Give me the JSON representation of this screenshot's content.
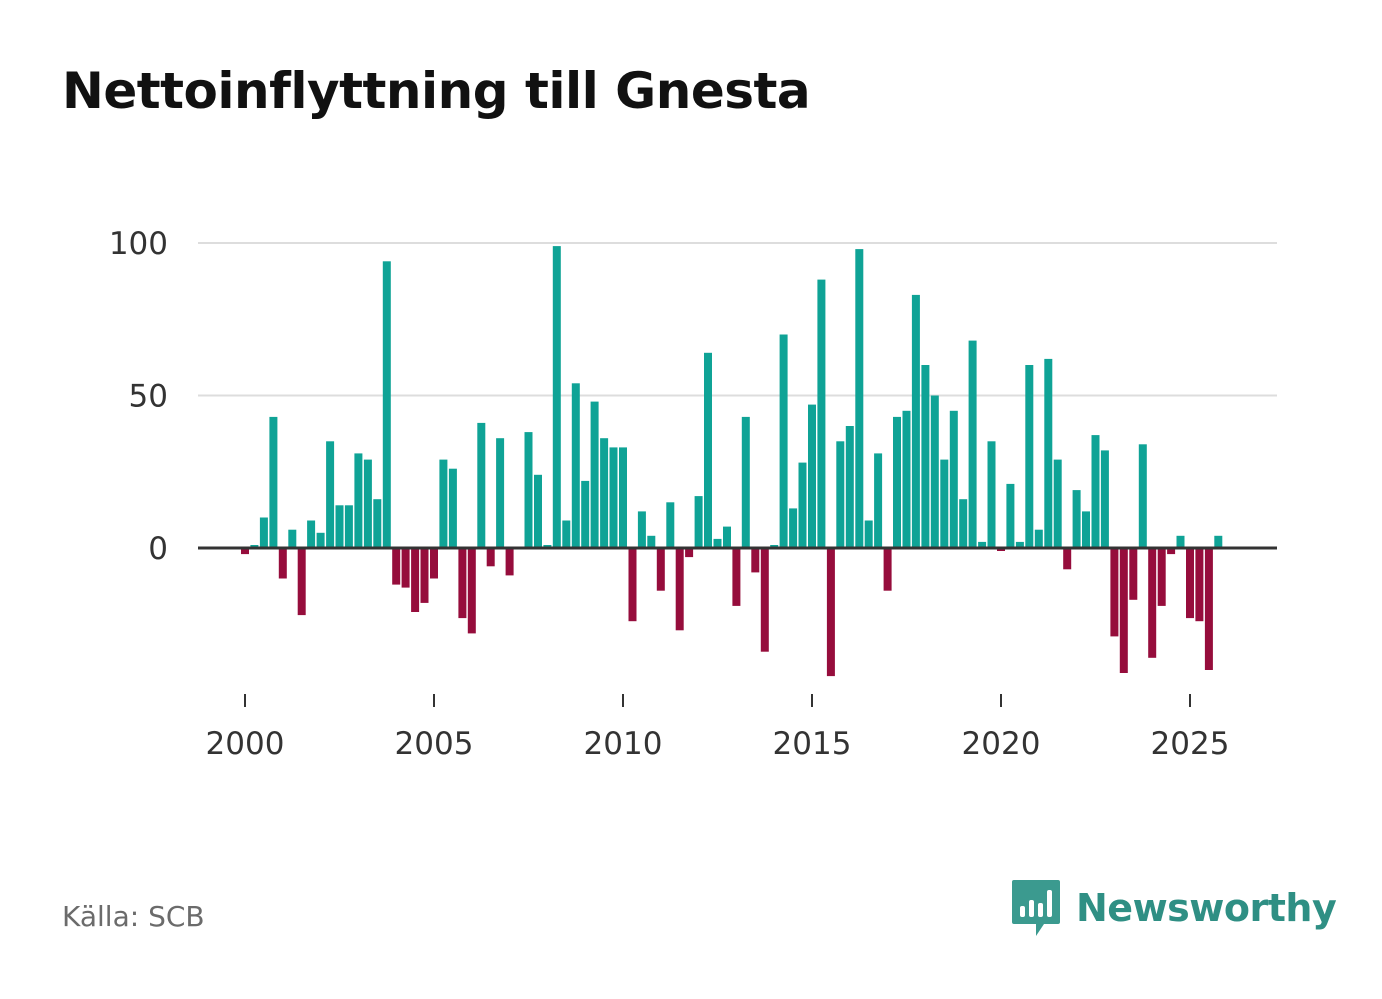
{
  "title": "Nettoinflyttning till Gnesta",
  "source": "Källa: SCB",
  "brand": {
    "name": "Newsworthy",
    "icon": "newsworthy-logo-icon",
    "color": "#2f8f84"
  },
  "colors": {
    "positive": "#0fa396",
    "negative": "#960d3c",
    "zero_line": "#333333",
    "grid": "#dddddd"
  },
  "chart_data": {
    "type": "bar",
    "title": "Nettoinflyttning till Gnesta",
    "xlabel": "",
    "ylabel": "",
    "ylim": [
      -50,
      100
    ],
    "xlim": [
      1999,
      2027.3
    ],
    "yticks": [
      0,
      50,
      100
    ],
    "xticks": [
      2000,
      2005,
      2010,
      2015,
      2020,
      2025
    ],
    "grid": true,
    "quarterly": true,
    "series": [
      {
        "name": "Nettoinflyttning",
        "start": 2000,
        "step": 0.25,
        "values": [
          -2,
          1,
          10,
          43,
          -10,
          6,
          -22,
          9,
          5,
          35,
          14,
          14,
          31,
          29,
          16,
          94,
          -12,
          -13,
          -21,
          -18,
          -10,
          29,
          26,
          -23,
          -28,
          41,
          -6,
          36,
          -9,
          0,
          38,
          24,
          1,
          99,
          9,
          54,
          22,
          48,
          36,
          33,
          33,
          -24,
          12,
          4,
          -14,
          15,
          -27,
          -3,
          17,
          64,
          3,
          7,
          -19,
          43,
          -8,
          -34,
          1,
          70,
          13,
          28,
          47,
          88,
          -42,
          35,
          40,
          98,
          9,
          31,
          -14,
          43,
          45,
          83,
          60,
          50,
          29,
          45,
          16,
          68,
          2,
          35,
          -1,
          21,
          2,
          60,
          6,
          62,
          29,
          -7,
          19,
          12,
          37,
          32,
          -29,
          -41,
          -17,
          34,
          -36,
          -19,
          -2,
          4,
          -23,
          -24,
          -40,
          4
        ]
      }
    ]
  }
}
